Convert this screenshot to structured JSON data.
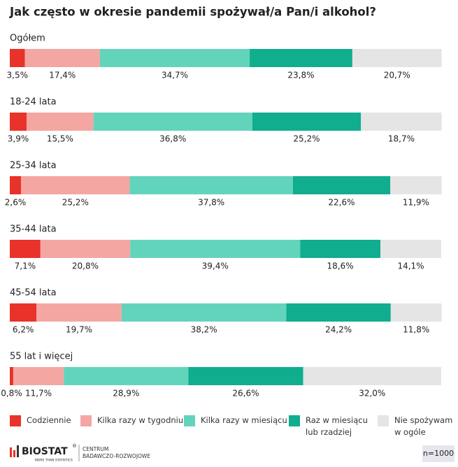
{
  "chart_data": {
    "type": "stacked-barh",
    "title": "Jak często w okresie pandemii spożywał/a Pan/i alkohol?",
    "categories": [
      "Ogółem",
      "18-24 lata",
      "25-34 lata",
      "35-44 lata",
      "45-54 lata",
      "55 lat i więcej"
    ],
    "xlim": [
      0,
      100
    ],
    "series": [
      {
        "name": "Codziennie",
        "color": "#e8322a",
        "values": [
          3.5,
          3.9,
          2.6,
          7.1,
          6.2,
          0.8
        ],
        "value_labels": [
          "3,5%",
          "3,9%",
          "2,6%",
          "7,1%",
          "6,2%",
          "0,8%"
        ]
      },
      {
        "name": "Kilka razy w tygodniu",
        "color": "#f4a6a3",
        "values": [
          17.4,
          15.5,
          25.2,
          20.8,
          19.7,
          11.7
        ],
        "value_labels": [
          "17,4%",
          "15,5%",
          "25,2%",
          "20,8%",
          "19,7%",
          "11,7%"
        ]
      },
      {
        "name": "Kilka razy w miesiącu",
        "color": "#63d4bc",
        "values": [
          34.7,
          36.8,
          37.8,
          39.4,
          38.2,
          28.9
        ],
        "value_labels": [
          "34,7%",
          "36,8%",
          "37,8%",
          "39,4%",
          "38,2%",
          "28,9%"
        ]
      },
      {
        "name": "Raz w miesiącu\nlub rzadziej",
        "color": "#10ad8f",
        "values": [
          23.8,
          25.2,
          22.6,
          18.6,
          24.2,
          26.6
        ],
        "value_labels": [
          "23,8%",
          "25,2%",
          "22,6%",
          "18,6%",
          "24,2%",
          "26,6%"
        ]
      },
      {
        "name": "Nie spożywam\nw ogóle",
        "color": "#e5e5e5",
        "values": [
          20.7,
          18.7,
          11.9,
          14.1,
          11.8,
          32.0
        ],
        "value_labels": [
          "20,7%",
          "18,7%",
          "11,9%",
          "14,1%",
          "11,8%",
          "32,0%"
        ]
      }
    ]
  },
  "footer": {
    "logo": "BIOSTAT",
    "logo_mark": "®",
    "tagline": "MORE THAN STATISTICS",
    "center": "CENTRUM\nBADAWCZO-ROZWOJOWE",
    "n": "n=1000"
  }
}
